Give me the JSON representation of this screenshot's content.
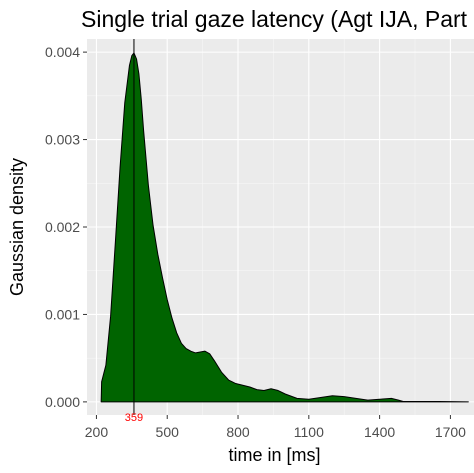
{
  "chart_data": {
    "type": "area",
    "title": "Single trial gaze latency (Agt IJA, Part R",
    "xlabel": "time in [ms]",
    "ylabel": "Gaussian density",
    "xlim": [
      160,
      1800
    ],
    "ylim": [
      -0.00015,
      0.00415
    ],
    "x_ticks": [
      200,
      500,
      800,
      1100,
      1400,
      1700
    ],
    "x_tick_labels": [
      "200",
      "500",
      "800",
      "1100",
      "1400",
      "1700"
    ],
    "y_ticks": [
      0,
      0.001,
      0.002,
      0.003,
      0.004
    ],
    "y_tick_labels": [
      "0.000",
      "0.001",
      "0.002",
      "0.003",
      "0.004"
    ],
    "grid": true,
    "fill_color": "#006400",
    "line_color": "#000000",
    "vline": {
      "x": 359,
      "label": "359",
      "label_color": "#ff0000"
    },
    "series": [
      {
        "x": [
          220,
          222,
          240,
          260,
          280,
          300,
          320,
          340,
          350,
          359,
          370,
          380,
          390,
          400,
          420,
          440,
          460,
          480,
          500,
          520,
          540,
          560,
          580,
          600,
          620,
          640,
          660,
          680,
          700,
          730,
          760,
          790,
          820,
          850,
          880,
          910,
          940,
          970,
          1000,
          1050,
          1100,
          1150,
          1200,
          1250,
          1300,
          1350,
          1400,
          1450,
          1480,
          1500,
          1550,
          1600,
          1650,
          1700,
          1776
        ],
        "values": [
          0,
          0.00023,
          0.00042,
          0.00098,
          0.00182,
          0.00268,
          0.00342,
          0.00385,
          0.00396,
          0.00399,
          0.00392,
          0.00375,
          0.00346,
          0.0031,
          0.00248,
          0.00202,
          0.00169,
          0.00142,
          0.00117,
          0.00096,
          0.00079,
          0.00067,
          0.00061,
          0.00058,
          0.00056,
          0.00057,
          0.00058,
          0.00055,
          0.00047,
          0.00034,
          0.00025,
          0.00021,
          0.00019,
          0.00017,
          0.00014,
          0.00013,
          0.00015,
          0.00013,
          9e-05,
          4e-05,
          3e-05,
          5e-05,
          7e-05,
          6e-05,
          4e-05,
          2e-05,
          3e-05,
          4e-05,
          2e-05,
          5e-06,
          4e-06,
          5e-06,
          4e-06,
          3e-06,
          0
        ]
      }
    ]
  }
}
